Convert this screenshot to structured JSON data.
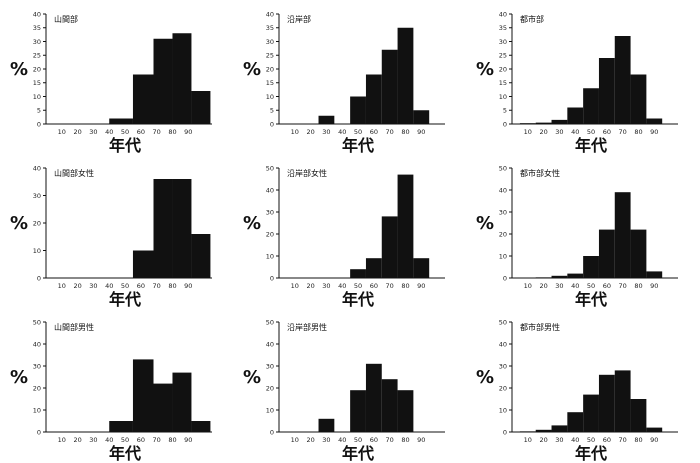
{
  "chart_data": [
    {
      "type": "bar",
      "title": "山間部",
      "xlabel": "年代",
      "ylabel": "%",
      "ylim": [
        0,
        40
      ],
      "yticks": [
        0,
        5,
        10,
        15,
        20,
        25,
        30,
        35,
        40
      ],
      "xticks": [
        10,
        20,
        30,
        40,
        50,
        60,
        70,
        80,
        90
      ],
      "bins": [
        [
          40,
          55,
          2
        ],
        [
          55,
          68,
          18
        ],
        [
          68,
          80,
          31
        ],
        [
          80,
          92,
          33
        ],
        [
          92,
          104,
          12
        ]
      ]
    },
    {
      "type": "bar",
      "title": "沿岸部",
      "xlabel": "年代",
      "ylabel": "%",
      "ylim": [
        0,
        40
      ],
      "yticks": [
        0,
        5,
        10,
        15,
        20,
        25,
        30,
        35,
        40
      ],
      "xticks": [
        10,
        20,
        30,
        40,
        50,
        60,
        70,
        80,
        90
      ],
      "bins": [
        [
          25,
          35,
          3
        ],
        [
          45,
          55,
          10
        ],
        [
          55,
          65,
          18
        ],
        [
          65,
          75,
          27
        ],
        [
          75,
          85,
          35
        ],
        [
          85,
          95,
          5
        ]
      ]
    },
    {
      "type": "bar",
      "title": "都市部",
      "xlabel": "年代",
      "ylabel": "%",
      "ylim": [
        0,
        40
      ],
      "yticks": [
        0,
        5,
        10,
        15,
        20,
        25,
        30,
        35,
        40
      ],
      "xticks": [
        10,
        20,
        30,
        40,
        50,
        60,
        70,
        80,
        90
      ],
      "bins": [
        [
          5,
          15,
          0.3
        ],
        [
          15,
          25,
          0.5
        ],
        [
          25,
          35,
          1.5
        ],
        [
          35,
          45,
          6
        ],
        [
          45,
          55,
          13
        ],
        [
          55,
          65,
          24
        ],
        [
          65,
          75,
          32
        ],
        [
          75,
          85,
          18
        ],
        [
          85,
          95,
          2
        ]
      ]
    },
    {
      "type": "bar",
      "title": "山間部女性",
      "xlabel": "年代",
      "ylabel": "%",
      "ylim": [
        0,
        40
      ],
      "yticks": [
        0,
        10,
        20,
        30,
        40
      ],
      "xticks": [
        10,
        20,
        30,
        40,
        50,
        60,
        70,
        80,
        90
      ],
      "bins": [
        [
          55,
          68,
          10
        ],
        [
          68,
          80,
          36
        ],
        [
          80,
          92,
          36
        ],
        [
          92,
          104,
          16
        ]
      ]
    },
    {
      "type": "bar",
      "title": "沿岸部女性",
      "xlabel": "年代",
      "ylabel": "%",
      "ylim": [
        0,
        50
      ],
      "yticks": [
        0,
        10,
        20,
        30,
        40,
        50
      ],
      "xticks": [
        10,
        20,
        30,
        40,
        50,
        60,
        70,
        80,
        90
      ],
      "bins": [
        [
          45,
          55,
          4
        ],
        [
          55,
          65,
          9
        ],
        [
          65,
          75,
          28
        ],
        [
          75,
          85,
          47
        ],
        [
          85,
          95,
          9
        ]
      ]
    },
    {
      "type": "bar",
      "title": "都市部女性",
      "xlabel": "年代",
      "ylabel": "%",
      "ylim": [
        0,
        50
      ],
      "yticks": [
        0,
        10,
        20,
        30,
        40,
        50
      ],
      "xticks": [
        10,
        20,
        30,
        40,
        50,
        60,
        70,
        80,
        90
      ],
      "bins": [
        [
          15,
          25,
          0.3
        ],
        [
          25,
          35,
          1
        ],
        [
          35,
          45,
          2
        ],
        [
          45,
          55,
          10
        ],
        [
          55,
          65,
          22
        ],
        [
          65,
          75,
          39
        ],
        [
          75,
          85,
          22
        ],
        [
          85,
          95,
          3
        ]
      ]
    },
    {
      "type": "bar",
      "title": "山間部男性",
      "xlabel": "年代",
      "ylabel": "%",
      "ylim": [
        0,
        50
      ],
      "yticks": [
        0,
        10,
        20,
        30,
        40,
        50
      ],
      "xticks": [
        10,
        20,
        30,
        40,
        50,
        60,
        70,
        80,
        90
      ],
      "bins": [
        [
          40,
          55,
          5
        ],
        [
          55,
          68,
          33
        ],
        [
          68,
          80,
          22
        ],
        [
          80,
          92,
          27
        ],
        [
          92,
          104,
          5
        ]
      ]
    },
    {
      "type": "bar",
      "title": "沿岸部男性",
      "xlabel": "年代",
      "ylabel": "%",
      "ylim": [
        0,
        50
      ],
      "yticks": [
        0,
        10,
        20,
        30,
        40,
        50
      ],
      "xticks": [
        10,
        20,
        30,
        40,
        50,
        60,
        70,
        80,
        90
      ],
      "bins": [
        [
          25,
          35,
          6
        ],
        [
          45,
          55,
          19
        ],
        [
          55,
          65,
          31
        ],
        [
          65,
          75,
          24
        ],
        [
          75,
          85,
          19
        ]
      ]
    },
    {
      "type": "bar",
      "title": "都市部男性",
      "xlabel": "年代",
      "ylabel": "%",
      "ylim": [
        0,
        50
      ],
      "yticks": [
        0,
        10,
        20,
        30,
        40,
        50
      ],
      "xticks": [
        10,
        20,
        30,
        40,
        50,
        60,
        70,
        80,
        90
      ],
      "bins": [
        [
          5,
          15,
          0.3
        ],
        [
          15,
          25,
          1
        ],
        [
          25,
          35,
          3
        ],
        [
          35,
          45,
          9
        ],
        [
          45,
          55,
          17
        ],
        [
          55,
          65,
          26
        ],
        [
          65,
          75,
          28
        ],
        [
          75,
          85,
          15
        ],
        [
          85,
          95,
          2
        ]
      ]
    }
  ]
}
